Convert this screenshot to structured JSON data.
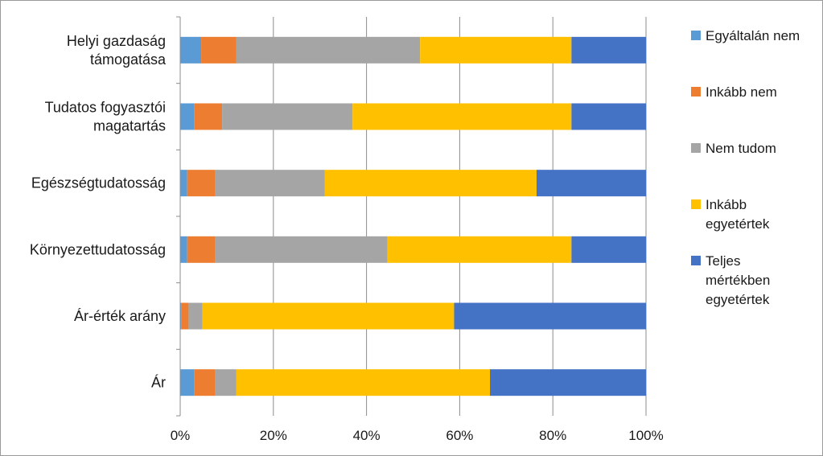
{
  "chart_data": {
    "type": "bar",
    "orientation": "horizontal",
    "stacked": "percent",
    "categories": [
      "Helyi gazdaság támogatása",
      "Tudatos fogyasztói magatartás",
      "Egészségtudatosság",
      "Környezettudatosság",
      "Ár-érték arány",
      "Ár"
    ],
    "category_lines": [
      [
        "Helyi gazdaság",
        "támogatása"
      ],
      [
        "Tudatos fogyasztói",
        "magatartás"
      ],
      [
        "Egészségtudatosság"
      ],
      [
        "Környezettudatosság"
      ],
      [
        "Ár-érték arány"
      ],
      [
        "Ár"
      ]
    ],
    "series": [
      {
        "name": "Egyáltalán nem",
        "legend_lines": [
          "Egyáltalán nem"
        ],
        "color": "#5B9BD5",
        "values": [
          4.5,
          3,
          1.5,
          1.5,
          0.3,
          3
        ]
      },
      {
        "name": "Inkább nem",
        "legend_lines": [
          "Inkább nem"
        ],
        "color": "#ED7D31",
        "values": [
          7.5,
          6,
          6,
          6,
          1.5,
          4.5
        ]
      },
      {
        "name": "Nem tudom",
        "legend_lines": [
          "Nem tudom"
        ],
        "color": "#A5A5A5",
        "values": [
          39.5,
          28,
          23.5,
          37,
          3,
          4.5
        ]
      },
      {
        "name": "Inkább egyetértek",
        "legend_lines": [
          "Inkább",
          "egyetértek"
        ],
        "color": "#FFC000",
        "values": [
          32.5,
          47,
          45.5,
          39.5,
          54,
          54.5
        ]
      },
      {
        "name": "Teljes mértékben egyetértek",
        "legend_lines": [
          "Teljes",
          "mértékben",
          "egyetértek"
        ],
        "color": "#4472C4",
        "values": [
          16,
          16,
          23.5,
          16,
          41.2,
          33.5
        ]
      }
    ],
    "x_ticks": [
      "0%",
      "20%",
      "40%",
      "60%",
      "80%",
      "100%"
    ],
    "xlim": [
      0,
      100
    ],
    "grid": "vertical",
    "legend_position": "right"
  }
}
